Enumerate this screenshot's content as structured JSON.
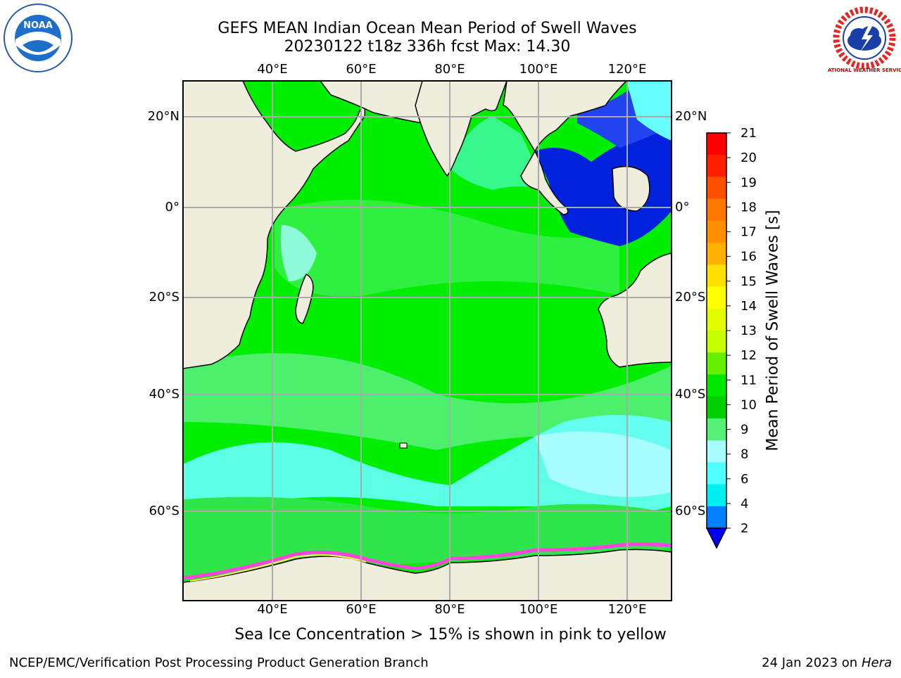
{
  "header": {
    "title_line1": "GEFS MEAN Indian Ocean Mean Period of Swell Waves",
    "title_line2": "20230122 t18z 336h fcst   Max: 14.30"
  },
  "logos": {
    "left": "NOAA",
    "right": "NATIONAL WEATHER SERVICE"
  },
  "map": {
    "lon_ticks": [
      "40°E",
      "60°E",
      "80°E",
      "100°E",
      "120°E"
    ],
    "lat_ticks_left": [
      "20°N",
      "0°",
      "20°S",
      "40°S",
      "60°S"
    ],
    "lat_ticks_right": [
      "20°N",
      "0°",
      "20°S",
      "40°S",
      "60°S"
    ],
    "colors": {
      "land": "#efeedc",
      "ocean_main": "#00ee00",
      "ocean_light": "#55f077",
      "ocean_cyan": "#66ffff",
      "ocean_lightcyan": "#a8ffff",
      "shallow_blue": "#0022dd",
      "ice_pink": "#ff44dd",
      "grid": "#aaaaaa"
    }
  },
  "colorbar": {
    "label": "Mean Period of Swell Waves [s]",
    "ticks": [
      "21",
      "20",
      "19",
      "18",
      "17",
      "16",
      "15",
      "14",
      "13",
      "12",
      "11",
      "10",
      "9",
      "8",
      "6",
      "4",
      "2"
    ],
    "colors": [
      "#ff0000",
      "#ff2000",
      "#ff5000",
      "#ff7800",
      "#ff9000",
      "#ffb000",
      "#ffe000",
      "#ffff00",
      "#e4ff00",
      "#c8ff00",
      "#64f000",
      "#00e600",
      "#00d000",
      "#55f077",
      "#a8ffff",
      "#50ffff",
      "#00f0f0",
      "#0080ff"
    ],
    "extend_color": "#0000ee"
  },
  "notes": {
    "ice": "Sea Ice Concentration > 15% is shown in pink to yellow"
  },
  "footer": {
    "left": "NCEP/EMC/Verification Post Processing Product Generation Branch",
    "right_date": "24 Jan 2023 on",
    "right_host": "Hera"
  }
}
